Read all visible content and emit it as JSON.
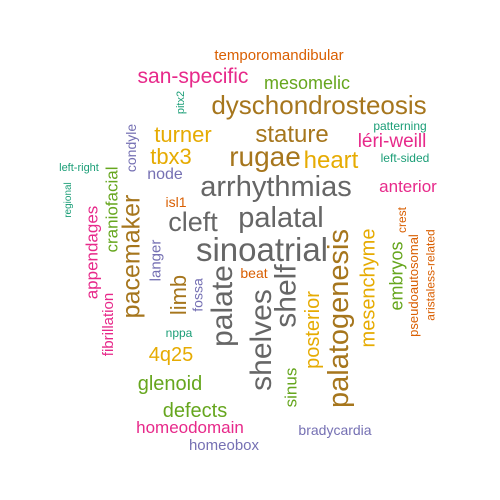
{
  "colors": {
    "green": "#1b9e77",
    "orange": "#d95f02",
    "purple": "#7570b3",
    "magenta": "#e7298a",
    "lime": "#66a61e",
    "gold": "#e6ab02",
    "brown": "#a6761d",
    "gray": "#666666"
  },
  "words": [
    {
      "text": "arrhythmias",
      "color": "gray",
      "rotated": false
    },
    {
      "text": "sinoatrial",
      "color": "gray",
      "rotated": false
    },
    {
      "text": "palatal",
      "color": "gray",
      "rotated": false
    },
    {
      "text": "palate",
      "color": "gray",
      "rotated": true
    },
    {
      "text": "shelves",
      "color": "gray",
      "rotated": true
    },
    {
      "text": "shelf",
      "color": "gray",
      "rotated": true
    },
    {
      "text": "dyschondrosteosis",
      "color": "brown",
      "rotated": false
    },
    {
      "text": "palatogenesis",
      "color": "brown",
      "rotated": true
    },
    {
      "text": "pacemaker",
      "color": "brown",
      "rotated": true
    },
    {
      "text": "rugae",
      "color": "brown",
      "rotated": false
    },
    {
      "text": "stature",
      "color": "brown",
      "rotated": false
    },
    {
      "text": "cleft",
      "color": "gray",
      "rotated": false
    },
    {
      "text": "heart",
      "color": "gold",
      "rotated": false
    },
    {
      "text": "tbx3",
      "color": "gold",
      "rotated": false
    },
    {
      "text": "turner",
      "color": "gold",
      "rotated": false
    },
    {
      "text": "limb",
      "color": "brown",
      "rotated": true
    },
    {
      "text": "4q25",
      "color": "gold",
      "rotated": false
    },
    {
      "text": "posterior",
      "color": "gold",
      "rotated": true
    },
    {
      "text": "mesenchyme",
      "color": "gold",
      "rotated": true
    },
    {
      "text": "san-specific",
      "color": "magenta",
      "rotated": false
    },
    {
      "text": "léri-weill",
      "color": "magenta",
      "rotated": false
    },
    {
      "text": "anterior",
      "color": "magenta",
      "rotated": false
    },
    {
      "text": "appendages",
      "color": "magenta",
      "rotated": true
    },
    {
      "text": "fibrillation",
      "color": "magenta",
      "rotated": true
    },
    {
      "text": "homeodomain",
      "color": "magenta",
      "rotated": false
    },
    {
      "text": "mesomelic",
      "color": "lime",
      "rotated": false
    },
    {
      "text": "craniofacial",
      "color": "lime",
      "rotated": true
    },
    {
      "text": "glenoid",
      "color": "lime",
      "rotated": false
    },
    {
      "text": "defects",
      "color": "lime",
      "rotated": false
    },
    {
      "text": "sinus",
      "color": "lime",
      "rotated": true
    },
    {
      "text": "embryos",
      "color": "lime",
      "rotated": true
    },
    {
      "text": "temporomandibular",
      "color": "orange",
      "rotated": false
    },
    {
      "text": "beat",
      "color": "orange",
      "rotated": false
    },
    {
      "text": "isl1",
      "color": "orange",
      "rotated": false
    },
    {
      "text": "crest",
      "color": "orange",
      "rotated": true
    },
    {
      "text": "pseudoautosomal",
      "color": "orange",
      "rotated": true
    },
    {
      "text": "aristaless-related",
      "color": "orange",
      "rotated": true
    },
    {
      "text": "condyle",
      "color": "purple",
      "rotated": true
    },
    {
      "text": "node",
      "color": "purple",
      "rotated": false
    },
    {
      "text": "langer",
      "color": "purple",
      "rotated": true
    },
    {
      "text": "fossa",
      "color": "purple",
      "rotated": true
    },
    {
      "text": "homeobox",
      "color": "purple",
      "rotated": false
    },
    {
      "text": "bradycardia",
      "color": "purple",
      "rotated": false
    },
    {
      "text": "pitx2",
      "color": "green",
      "rotated": true
    },
    {
      "text": "patterning",
      "color": "green",
      "rotated": false
    },
    {
      "text": "left-sided",
      "color": "green",
      "rotated": false
    },
    {
      "text": "left-right",
      "color": "green",
      "rotated": false
    },
    {
      "text": "regional",
      "color": "green",
      "rotated": true
    },
    {
      "text": "nppa",
      "color": "green",
      "rotated": false
    }
  ]
}
